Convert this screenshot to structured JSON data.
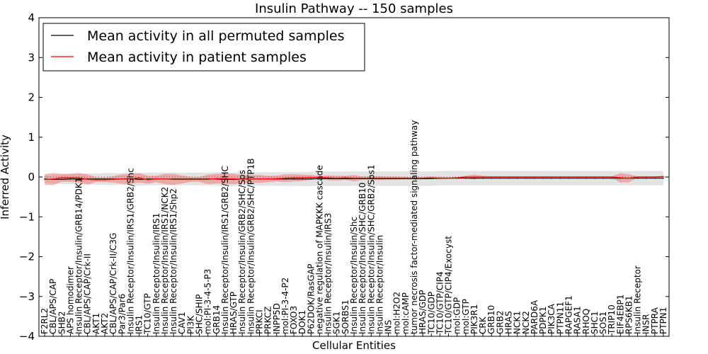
{
  "chart_data": {
    "type": "line",
    "title": "Insulin Pathway -- 150 samples",
    "xlabel": "Cellular Entities",
    "ylabel": "Inferred Activity",
    "ylim": [
      -4,
      4
    ],
    "yticks": [
      4,
      3,
      2,
      1,
      0,
      -1,
      -2,
      -3,
      -4
    ],
    "ytick_labels": [
      "4",
      "3",
      "2",
      "1",
      "0",
      "−1",
      "−2",
      "−3",
      "−4"
    ],
    "reference_line": 0,
    "legend_position": "top-left",
    "categories": [
      "F2RL2",
      "CBL/APS/CAP",
      "SHB2",
      "APS homodimer",
      "Insulin Receptor/Insulin/GRB14/PDK1",
      "CBL/APS/CAP/Crk-II",
      "AKT1",
      "AKT2",
      "CBL/APS/CAP/Crk-II/C3G",
      "Par3/Par6",
      "Insulin Receptor/Insulin/IRS1/GRB2/Shc",
      "IRS1",
      "TC10/GTP",
      "Insulin Receptor/Insulin/IRS1",
      "Insulin Receptor/Insulin/IRS1/NCK2",
      "Insulin Receptor/Insulin/IRS1/Shp2",
      "CAV1",
      "PI3K",
      "SHC/SHIP",
      "mol:PI-3-4-5-P3",
      "GRB14",
      "Insulin Receptor/Insulin/IRS1/GRB2/SHC",
      "HRAS/GTP",
      "Insulin Receptor/Insulin/GRB2/SHC/Sos",
      "Insulin Receptor/Insulin/GRB2/SHC/PTP1B",
      "PRKCI",
      "PRKCZ",
      "INPP5D",
      "mol:PI-3-4-P2",
      "FOXO3",
      "DOK1",
      "P62DOK/RasGAP",
      "negative regulation of MAPKKK cascade",
      "Insulin Receptor/Insulin/IRS3",
      "SGK1",
      "SORBS1",
      "Insulin Receptor/Insulin/Shc",
      "Insulin Receptor/Insulin/SHC/GRB10",
      "Insulin Receptor/Insulin/SHC/GRB2/Sos1",
      "Insulin Receptor/Insulin",
      "INS",
      "mol:H2O2",
      "mol:cAMP",
      "tumor necrosis factor-mediated signaling pathway",
      "HRAS/GDP",
      "TC10/GDP",
      "TC10/GTP/CIP4",
      "TC10/GTP/CIP4/Exocyst",
      "mol:GDP",
      "mol:GTP",
      "PIK3R1",
      "CRK",
      "GRB10",
      "GRB2",
      "HRAS",
      "NCK1",
      "NCK2",
      "PARD6A",
      "PDPK1",
      "PIK3CA",
      "PTPN11",
      "RAPGEF1",
      "RASA1",
      "RHOQ",
      "SHC1",
      "SOS1",
      "TRIP10",
      "EIF4EBP1",
      "RPS6KB1",
      "Insulin Receptor",
      "INSR",
      "PTPRA",
      "PTPN1"
    ],
    "series": [
      {
        "name": "Mean activity in all permuted samples",
        "color": "#000000",
        "values": [
          -0.05,
          -0.06,
          -0.06,
          -0.05,
          -0.05,
          -0.05,
          -0.05,
          -0.05,
          -0.05,
          -0.05,
          -0.04,
          -0.06,
          -0.05,
          -0.05,
          -0.05,
          -0.05,
          -0.05,
          -0.05,
          -0.05,
          -0.05,
          -0.05,
          -0.06,
          -0.06,
          -0.05,
          -0.05,
          -0.05,
          -0.05,
          -0.05,
          -0.05,
          -0.05,
          -0.05,
          -0.05,
          -0.04,
          -0.04,
          -0.04,
          -0.04,
          -0.04,
          -0.04,
          -0.04,
          -0.04,
          -0.04,
          -0.04,
          -0.04,
          -0.04,
          -0.04,
          -0.04,
          -0.03,
          -0.03,
          -0.03,
          -0.03,
          -0.03,
          -0.03,
          -0.03,
          -0.03,
          -0.03,
          -0.03,
          -0.03,
          -0.03,
          -0.03,
          -0.03,
          -0.03,
          -0.03,
          -0.03,
          -0.03,
          -0.03,
          -0.03,
          -0.03,
          -0.03,
          -0.03,
          -0.03,
          -0.03,
          -0.03,
          -0.03
        ],
        "band": [
          0.08,
          0.1,
          0.12,
          0.13,
          0.13,
          0.14,
          0.14,
          0.15,
          0.15,
          0.15,
          0.15,
          0.16,
          0.16,
          0.16,
          0.16,
          0.16,
          0.16,
          0.16,
          0.16,
          0.16,
          0.17,
          0.17,
          0.17,
          0.17,
          0.17,
          0.17,
          0.17,
          0.17,
          0.17,
          0.17,
          0.18,
          0.18,
          0.18,
          0.18,
          0.18,
          0.18,
          0.18,
          0.18,
          0.18,
          0.18,
          0.18,
          0.18,
          0.18,
          0.18,
          0.18,
          0.18,
          0.18,
          0.18,
          0.18,
          0.18,
          0.18,
          0.18,
          0.18,
          0.18,
          0.18,
          0.18,
          0.18,
          0.18,
          0.18,
          0.18,
          0.18,
          0.18,
          0.18,
          0.18,
          0.18,
          0.18,
          0.18,
          0.18,
          0.18,
          0.18,
          0.18,
          0.18,
          0.18
        ]
      },
      {
        "name": "Mean activity in patient samples",
        "color": "#ff0000",
        "values": [
          -0.06,
          -0.05,
          -0.02,
          -0.02,
          -0.02,
          -0.06,
          -0.07,
          -0.07,
          -0.06,
          -0.05,
          -0.05,
          -0.02,
          -0.07,
          -0.05,
          -0.05,
          -0.06,
          -0.06,
          -0.06,
          -0.06,
          -0.06,
          -0.04,
          -0.04,
          -0.05,
          -0.05,
          -0.05,
          -0.05,
          -0.05,
          -0.04,
          -0.03,
          -0.02,
          -0.02,
          -0.01,
          -0.01,
          -0.02,
          -0.03,
          -0.02,
          -0.03,
          -0.03,
          -0.03,
          -0.03,
          -0.03,
          -0.03,
          -0.03,
          -0.03,
          -0.03,
          -0.02,
          -0.03,
          -0.03,
          -0.02,
          0.0,
          0.0,
          0.0,
          0.0,
          0.0,
          0.0,
          0.0,
          0.0,
          0.0,
          0.0,
          0.0,
          0.0,
          0.0,
          0.0,
          0.0,
          0.0,
          0.0,
          0.0,
          -0.02,
          -0.03,
          0.0,
          0.0,
          0.0,
          0.01
        ],
        "band": [
          0.13,
          0.15,
          0.1,
          0.1,
          0.12,
          0.13,
          0.06,
          0.06,
          0.08,
          0.12,
          0.12,
          0.12,
          0.1,
          0.08,
          0.13,
          0.14,
          0.1,
          0.06,
          0.06,
          0.12,
          0.12,
          0.13,
          0.13,
          0.1,
          0.1,
          0.1,
          0.08,
          0.07,
          0.1,
          0.09,
          0.08,
          0.06,
          0.04,
          0.06,
          0.06,
          0.05,
          0.08,
          0.04,
          0.05,
          0.05,
          0.04,
          0.04,
          0.03,
          0.03,
          0.03,
          0.03,
          0.03,
          0.02,
          0.02,
          0.03,
          0.06,
          0.03,
          0.02,
          0.02,
          0.02,
          0.02,
          0.02,
          0.02,
          0.02,
          0.02,
          0.02,
          0.02,
          0.02,
          0.02,
          0.02,
          0.02,
          0.02,
          0.12,
          0.1,
          0.02,
          0.02,
          0.02,
          0.02
        ]
      }
    ]
  },
  "colors": {
    "permuted_band": "#d9d9d9",
    "patient_band": "#f08080",
    "reference_line": "#ff0000"
  }
}
